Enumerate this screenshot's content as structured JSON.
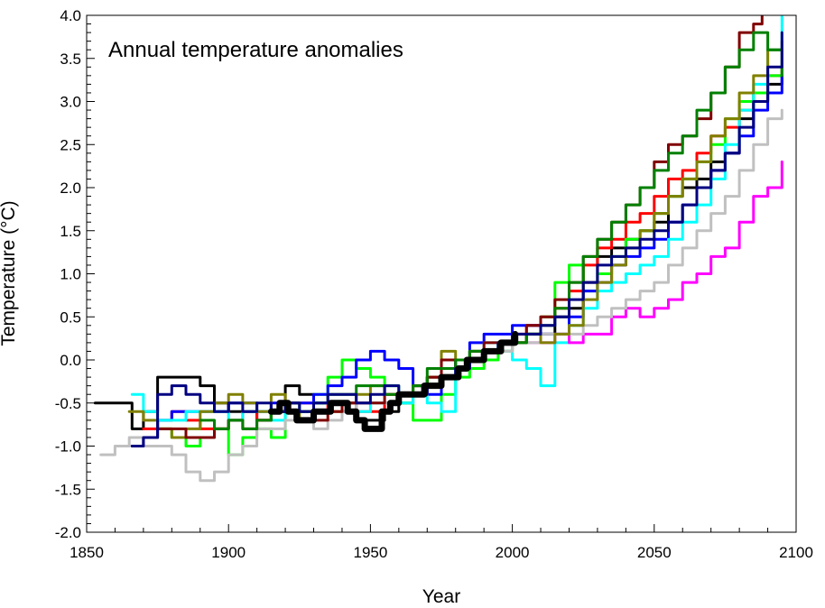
{
  "chart_data": {
    "type": "line",
    "title": "Annual temperature anomalies",
    "xlabel": "Year",
    "ylabel": "Temperature (°C)",
    "xlim": [
      1850,
      2100
    ],
    "ylim": [
      -2.0,
      4.0
    ],
    "x_ticks": [
      1850,
      1900,
      1950,
      2000,
      2050,
      2100
    ],
    "y_ticks": [
      "-2.0",
      "-1.5",
      "-1.0",
      "-0.5",
      "0.0",
      "0.5",
      "1.0",
      "1.5",
      "2.0",
      "2.5",
      "3.0",
      "3.5",
      "4.0"
    ],
    "grid": false,
    "legend": "none",
    "series": [
      {
        "color": "#000000",
        "width": 3,
        "x": [
          1853,
          1860,
          1866,
          1870,
          1875,
          1880,
          1885,
          1890,
          1895,
          1900,
          1905,
          1910,
          1915,
          1920,
          1925,
          1930,
          1935,
          1940,
          1945,
          1950,
          1955,
          1960,
          1965,
          1970,
          1975,
          1980,
          1985,
          1990,
          1995,
          2000,
          2005,
          2010,
          2015,
          2020,
          2025,
          2030,
          2035,
          2040,
          2045,
          2050,
          2055,
          2060,
          2065,
          2070,
          2075,
          2080,
          2085,
          2090,
          2095
        ],
        "y": [
          -0.5,
          -0.5,
          -0.8,
          -0.6,
          -0.2,
          -0.2,
          -0.2,
          -0.3,
          -0.5,
          -0.6,
          -0.6,
          -0.7,
          -0.6,
          -0.3,
          -0.4,
          -0.5,
          -0.5,
          -0.6,
          -0.7,
          -0.7,
          -0.6,
          -0.5,
          -0.4,
          -0.2,
          -0.2,
          -0.1,
          0.0,
          0.1,
          0.2,
          0.2,
          0.3,
          0.3,
          0.5,
          0.6,
          0.9,
          1.2,
          1.3,
          1.4,
          1.5,
          1.6,
          1.9,
          2.0,
          2.1,
          2.3,
          2.4,
          2.8,
          3.0,
          3.2,
          3.3
        ]
      },
      {
        "color": "#ff0000",
        "width": 3,
        "x": [
          1870,
          1875,
          1880,
          1885,
          1890,
          1895,
          1900,
          1905,
          1910,
          1915,
          1920,
          1925,
          1930,
          1935,
          1940,
          1945,
          1950,
          1955,
          1960,
          1965,
          1970,
          1975,
          1980,
          1985,
          1990,
          1995,
          2000,
          2005,
          2010,
          2015,
          2020,
          2025,
          2030,
          2035,
          2040,
          2045,
          2050,
          2055,
          2060,
          2065,
          2070,
          2075,
          2080,
          2085,
          2090,
          2095
        ],
        "y": [
          -0.8,
          -0.7,
          -0.6,
          -0.7,
          -0.8,
          -0.8,
          -0.7,
          -0.6,
          -0.7,
          -0.6,
          -0.5,
          -0.5,
          -0.6,
          -0.5,
          -0.5,
          -0.6,
          -0.6,
          -0.5,
          -0.4,
          -0.4,
          -0.3,
          -0.2,
          -0.1,
          0.0,
          0.1,
          0.1,
          0.3,
          0.4,
          0.5,
          0.6,
          0.8,
          1.1,
          1.3,
          1.4,
          1.6,
          1.7,
          1.9,
          2.1,
          2.2,
          2.4,
          2.6,
          2.7,
          2.9,
          3.1,
          3.3,
          3.4
        ]
      },
      {
        "color": "#00ff00",
        "width": 3,
        "x": [
          1875,
          1880,
          1885,
          1890,
          1895,
          1900,
          1905,
          1910,
          1915,
          1920,
          1925,
          1930,
          1935,
          1940,
          1945,
          1950,
          1955,
          1960,
          1965,
          1970,
          1975,
          1980,
          1985,
          1990,
          1995,
          2000,
          2005,
          2010,
          2015,
          2020,
          2025,
          2030,
          2035,
          2040,
          2045,
          2050,
          2055,
          2060,
          2065,
          2070,
          2075,
          2080,
          2085,
          2090,
          2095
        ],
        "y": [
          -0.8,
          -0.9,
          -1.0,
          -0.9,
          -0.8,
          -1.1,
          -0.9,
          -0.8,
          -0.9,
          -0.6,
          -0.6,
          -0.4,
          -0.2,
          0.0,
          -0.1,
          -0.2,
          -0.3,
          -0.5,
          -0.7,
          -0.7,
          -0.4,
          -0.2,
          -0.1,
          0.0,
          0.1,
          0.2,
          0.3,
          0.5,
          0.9,
          1.1,
          0.8,
          1.0,
          1.2,
          1.4,
          1.5,
          1.7,
          1.9,
          2.1,
          2.3,
          2.5,
          2.8,
          3.0,
          3.1,
          3.3,
          3.4
        ]
      },
      {
        "color": "#0000ff",
        "width": 3,
        "x": [
          1866,
          1870,
          1875,
          1880,
          1885,
          1890,
          1895,
          1900,
          1905,
          1910,
          1915,
          1920,
          1925,
          1930,
          1935,
          1940,
          1945,
          1950,
          1955,
          1960,
          1965,
          1970,
          1975,
          1980,
          1985,
          1990,
          1995,
          2000,
          2005,
          2010,
          2015,
          2020,
          2025,
          2030,
          2035,
          2040,
          2045,
          2050,
          2055,
          2060,
          2065,
          2070,
          2075,
          2080,
          2085,
          2090,
          2095
        ],
        "y": [
          -1.0,
          -0.9,
          -0.7,
          -0.6,
          -0.6,
          -0.6,
          -0.6,
          -0.5,
          -0.5,
          -0.6,
          -0.5,
          -0.5,
          -0.5,
          -0.4,
          -0.3,
          -0.2,
          0.0,
          0.1,
          0.0,
          -0.1,
          -0.3,
          -0.4,
          -0.2,
          0.0,
          0.2,
          0.3,
          0.3,
          0.4,
          0.4,
          0.3,
          0.3,
          0.5,
          0.8,
          0.9,
          1.1,
          1.2,
          1.3,
          1.4,
          1.6,
          1.8,
          2.0,
          2.2,
          2.4,
          2.6,
          2.9,
          3.1,
          3.3
        ]
      },
      {
        "color": "#00ffff",
        "width": 3,
        "x": [
          1866,
          1870,
          1875,
          1880,
          1885,
          1890,
          1895,
          1900,
          1905,
          1910,
          1915,
          1920,
          1925,
          1930,
          1935,
          1940,
          1945,
          1950,
          1955,
          1960,
          1965,
          1970,
          1975,
          1980,
          1985,
          1990,
          1995,
          2000,
          2005,
          2010,
          2015,
          2020,
          2025,
          2030,
          2035,
          2040,
          2045,
          2050,
          2055,
          2060,
          2065,
          2070,
          2075,
          2080,
          2085,
          2090,
          2095
        ],
        "y": [
          -0.4,
          -0.6,
          -0.7,
          -0.7,
          -0.6,
          -0.6,
          -0.6,
          -0.7,
          -0.6,
          -0.6,
          -0.7,
          -0.6,
          -0.6,
          -0.5,
          -0.5,
          -0.6,
          -0.6,
          -0.5,
          -0.5,
          -0.5,
          -0.4,
          -0.5,
          -0.6,
          -0.1,
          0.1,
          0.2,
          0.1,
          0.0,
          -0.1,
          -0.3,
          0.2,
          0.4,
          0.6,
          0.8,
          0.9,
          1.0,
          1.1,
          1.2,
          1.4,
          1.6,
          1.8,
          2.1,
          2.5,
          2.9,
          3.2,
          3.6,
          4.0
        ]
      },
      {
        "color": "#ff00ff",
        "width": 3,
        "x": [
          2005,
          2010,
          2015,
          2020,
          2025,
          2030,
          2035,
          2040,
          2045,
          2050,
          2055,
          2060,
          2065,
          2070,
          2075,
          2080,
          2085,
          2090,
          2095
        ],
        "y": [
          0.2,
          0.2,
          0.3,
          0.2,
          0.3,
          0.3,
          0.5,
          0.6,
          0.5,
          0.6,
          0.7,
          0.9,
          1.0,
          1.2,
          1.3,
          1.6,
          1.9,
          2.0,
          2.3
        ]
      },
      {
        "color": "#c0c0c0",
        "width": 3,
        "x": [
          1855,
          1860,
          1865,
          1870,
          1875,
          1880,
          1885,
          1890,
          1895,
          1900,
          1905,
          1910,
          1915,
          1920,
          1925,
          1930,
          1935,
          1940,
          1945,
          1950,
          1955,
          1960,
          1965,
          1970,
          1975,
          1980,
          1985,
          1990,
          1995,
          2000,
          2005,
          2010,
          2015,
          2020,
          2025,
          2030,
          2035,
          2040,
          2045,
          2050,
          2055,
          2060,
          2065,
          2070,
          2075,
          2080,
          2085,
          2090,
          2095
        ],
        "y": [
          -1.1,
          -1.0,
          -0.9,
          -1.0,
          -1.0,
          -1.1,
          -1.3,
          -1.4,
          -1.3,
          -1.1,
          -1.0,
          -0.8,
          -0.8,
          -0.7,
          -0.7,
          -0.8,
          -0.7,
          -0.6,
          -0.5,
          -0.5,
          -0.5,
          -0.4,
          -0.4,
          -0.3,
          -0.2,
          -0.1,
          0.0,
          0.1,
          0.1,
          0.2,
          0.2,
          0.3,
          0.3,
          0.3,
          0.4,
          0.5,
          0.6,
          0.7,
          0.8,
          0.9,
          1.1,
          1.3,
          1.5,
          1.7,
          1.9,
          2.2,
          2.5,
          2.8,
          2.9
        ]
      },
      {
        "color": "#808000",
        "width": 3,
        "x": [
          1865,
          1870,
          1875,
          1880,
          1885,
          1890,
          1895,
          1900,
          1905,
          1910,
          1915,
          1920,
          1925,
          1930,
          1935,
          1940,
          1945,
          1950,
          1955,
          1960,
          1965,
          1970,
          1975,
          1980,
          1985,
          1990,
          1995,
          2000,
          2005,
          2010,
          2015,
          2020,
          2025,
          2030,
          2035,
          2040,
          2045,
          2050,
          2055,
          2060,
          2065,
          2070,
          2075,
          2080,
          2085,
          2090,
          2095
        ],
        "y": [
          -0.6,
          -0.7,
          -0.8,
          -0.9,
          -0.8,
          -0.6,
          -0.5,
          -0.4,
          -0.5,
          -0.6,
          -0.4,
          -0.6,
          -0.7,
          -0.6,
          -0.6,
          -0.5,
          -0.4,
          -0.3,
          -0.4,
          -0.4,
          -0.3,
          -0.2,
          0.1,
          0.0,
          0.1,
          0.1,
          0.2,
          0.2,
          0.3,
          0.2,
          0.3,
          0.4,
          0.7,
          0.9,
          1.1,
          1.3,
          1.5,
          1.7,
          1.9,
          2.1,
          2.3,
          2.6,
          2.8,
          3.1,
          3.3,
          3.6,
          3.7
        ]
      },
      {
        "color": "#800000",
        "width": 3,
        "x": [
          1875,
          1880,
          1885,
          1890,
          1895,
          1900,
          1905,
          1910,
          1915,
          1920,
          1925,
          1930,
          1935,
          1940,
          1945,
          1950,
          1955,
          1960,
          1965,
          1970,
          1975,
          1980,
          1985,
          1990,
          1995,
          2000,
          2005,
          2010,
          2015,
          2020,
          2025,
          2030,
          2035,
          2040,
          2045,
          2050,
          2055,
          2060,
          2065,
          2070,
          2075,
          2080,
          2085,
          2088
        ],
        "y": [
          -0.8,
          -0.8,
          -0.9,
          -0.9,
          -0.8,
          -0.7,
          -0.8,
          -0.7,
          -0.6,
          -0.6,
          -0.6,
          -0.7,
          -0.6,
          -0.5,
          -0.5,
          -0.5,
          -0.4,
          -0.4,
          -0.3,
          -0.2,
          0.0,
          -0.1,
          0.1,
          0.2,
          0.2,
          0.2,
          0.4,
          0.5,
          0.7,
          0.9,
          1.2,
          1.4,
          1.6,
          1.8,
          2.0,
          2.3,
          2.5,
          2.6,
          2.8,
          3.1,
          3.4,
          3.8,
          3.9,
          4.0
        ]
      },
      {
        "color": "#008000",
        "width": 3,
        "x": [
          1890,
          1895,
          1900,
          1905,
          1910,
          1915,
          1920,
          1925,
          1930,
          1935,
          1940,
          1945,
          1950,
          1955,
          1960,
          1965,
          1970,
          1975,
          1980,
          1985,
          1990,
          1995,
          2000,
          2005,
          2010,
          2015,
          2020,
          2025,
          2030,
          2035,
          2040,
          2045,
          2050,
          2055,
          2060,
          2065,
          2070,
          2075,
          2080,
          2085,
          2090,
          2095
        ],
        "y": [
          -0.7,
          -0.8,
          -0.7,
          -0.8,
          -0.7,
          -0.6,
          -0.5,
          -0.6,
          -0.5,
          -0.4,
          -0.4,
          -0.3,
          -0.3,
          -0.4,
          -0.4,
          -0.3,
          -0.1,
          -0.1,
          0.0,
          0.1,
          0.1,
          0.2,
          0.2,
          0.3,
          0.4,
          0.6,
          0.9,
          1.2,
          1.4,
          1.6,
          1.8,
          2.0,
          2.2,
          2.4,
          2.6,
          2.9,
          3.1,
          3.4,
          3.6,
          3.8,
          3.6,
          3.3
        ]
      },
      {
        "color": "#000080",
        "width": 3,
        "x": [
          1866,
          1870,
          1875,
          1880,
          1885,
          1890,
          1895,
          1900,
          1905,
          1910,
          1915,
          1920,
          1925,
          1930,
          1935,
          1940,
          1945,
          1950,
          1955,
          1960,
          1965,
          1970,
          1975,
          1980,
          1985,
          1990,
          1995,
          2000,
          2005,
          2010,
          2015,
          2020,
          2025,
          2030,
          2035,
          2040,
          2045,
          2050,
          2055,
          2060,
          2065,
          2070,
          2075,
          2080,
          2085,
          2090,
          2095
        ],
        "y": [
          -1.0,
          -0.9,
          -0.4,
          -0.3,
          -0.4,
          -0.5,
          -0.6,
          -0.5,
          -0.6,
          -0.5,
          -0.6,
          -0.5,
          -0.6,
          -0.5,
          -0.4,
          -0.4,
          -0.5,
          -0.4,
          -0.3,
          -0.4,
          -0.4,
          -0.3,
          -0.2,
          -0.1,
          0.0,
          0.1,
          0.2,
          0.3,
          0.3,
          0.4,
          0.5,
          0.7,
          0.9,
          1.1,
          1.2,
          1.3,
          1.4,
          1.5,
          1.6,
          1.8,
          2.0,
          2.2,
          2.4,
          2.7,
          3.0,
          3.4,
          3.8
        ]
      },
      {
        "color": "#000000",
        "width": 7,
        "x": [
          1915,
          1918,
          1921,
          1924,
          1927,
          1930,
          1933,
          1936,
          1939,
          1942,
          1945,
          1948,
          1951,
          1954,
          1957,
          1960,
          1963,
          1966,
          1969,
          1972,
          1975,
          1978,
          1981,
          1984,
          1987,
          1990,
          1993,
          1996,
          1999,
          2001
        ],
        "y": [
          -0.6,
          -0.5,
          -0.6,
          -0.7,
          -0.7,
          -0.6,
          -0.6,
          -0.5,
          -0.5,
          -0.6,
          -0.7,
          -0.8,
          -0.8,
          -0.6,
          -0.5,
          -0.4,
          -0.4,
          -0.4,
          -0.3,
          -0.3,
          -0.2,
          -0.2,
          -0.1,
          0.0,
          0.0,
          0.1,
          0.1,
          0.2,
          0.2,
          0.3
        ]
      }
    ]
  }
}
